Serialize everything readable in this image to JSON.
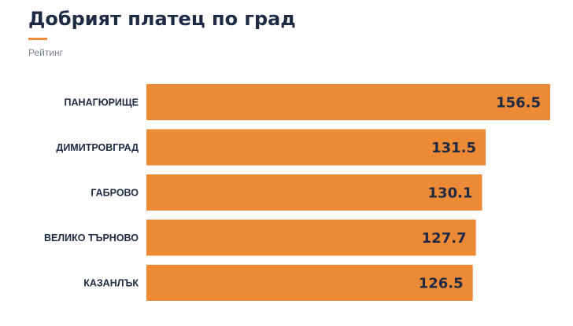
{
  "header": {
    "title": "Добрият платец по град",
    "subtitle": "Рейтинг"
  },
  "colors": {
    "bar": "#ec8a35",
    "text": "#1f2a44",
    "accent": "#ec8a35"
  },
  "chart_data": {
    "type": "bar",
    "orientation": "horizontal",
    "title": "Добрият платец по град",
    "subtitle": "Рейтинг",
    "categories": [
      "ПАНАГЮРИЩЕ",
      "ДИМИТРОВГРАД",
      "ГАБРОВО",
      "ВЕЛИКО ТЪРНОВО",
      "КАЗАНЛЪК"
    ],
    "values": [
      156.5,
      131.5,
      130.1,
      127.7,
      126.5
    ],
    "value_labels": [
      "156.5",
      "131.5",
      "130.1",
      "127.7",
      "126.5"
    ],
    "xlim": [
      0,
      156.5
    ],
    "grid": false,
    "legend": "none"
  }
}
